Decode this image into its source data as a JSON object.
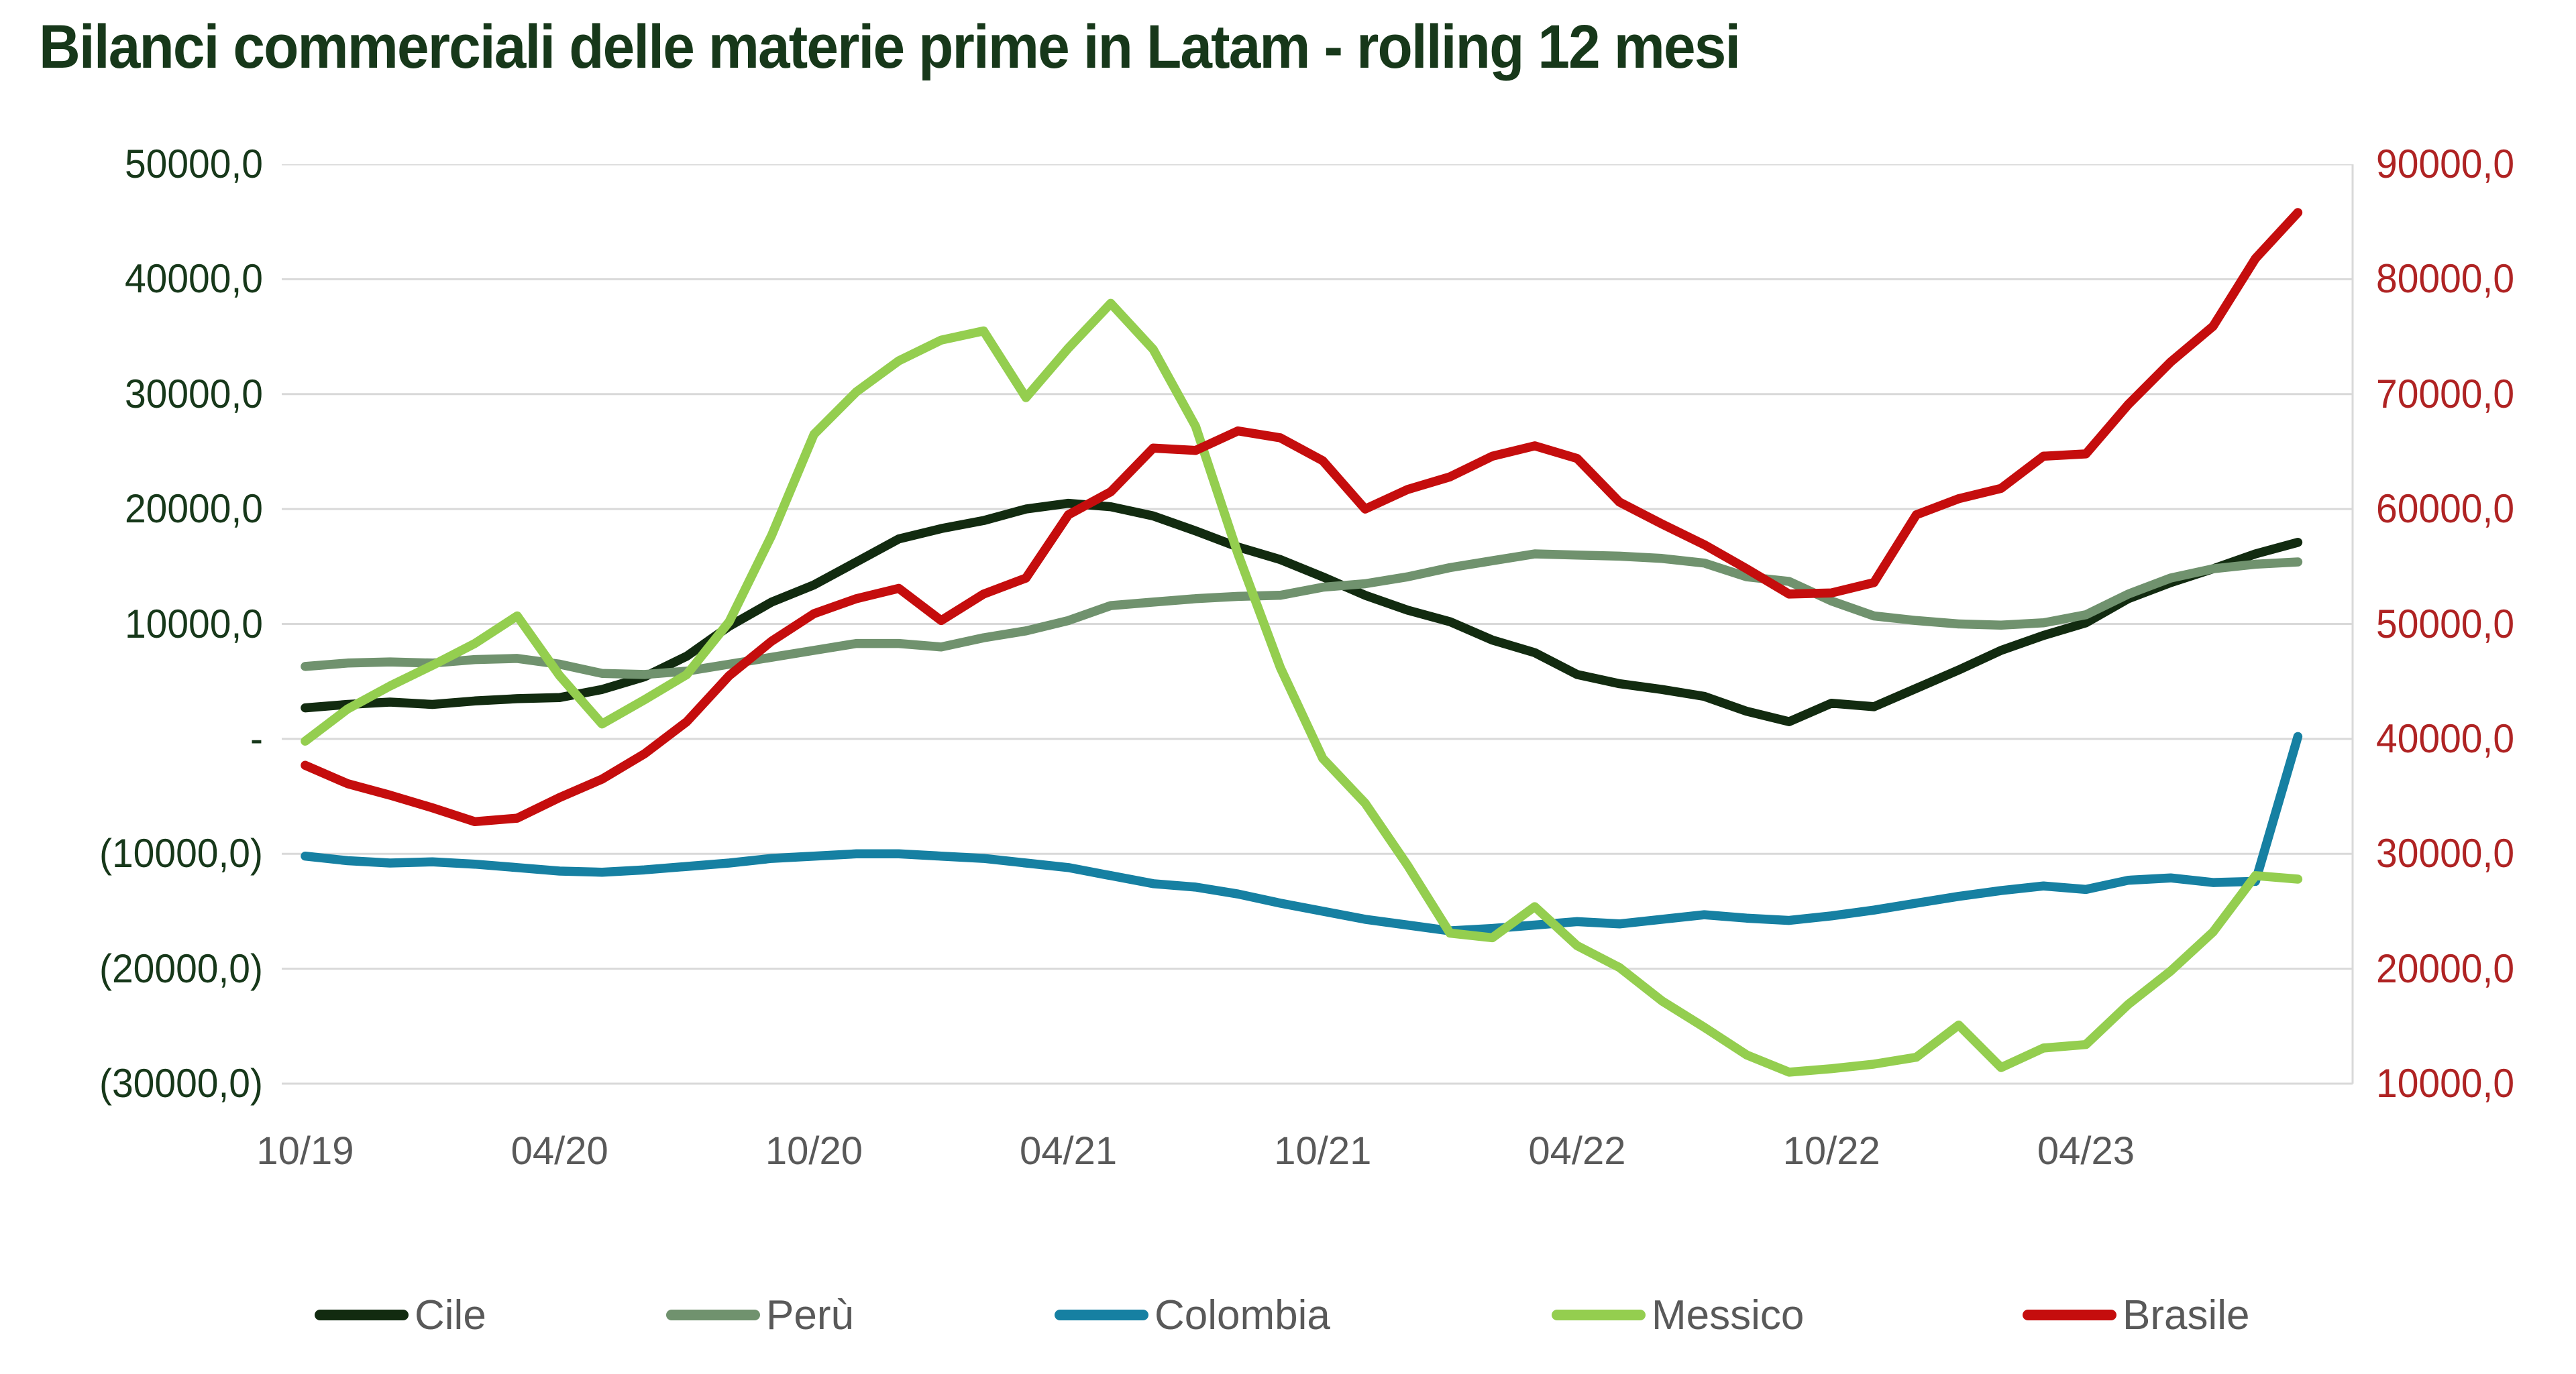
{
  "title": "Bilanci commerciali delle materie prime in Latam - rolling 12 mesi",
  "colors": {
    "background": "#FFFFFF",
    "title_text": "#17381A",
    "left_axis_labels": "#17381A",
    "right_axis_labels": "#AF2323",
    "x_axis_labels": "#595959",
    "legend_text": "#595959",
    "gridline": "#D9D9D9"
  },
  "chart_data": {
    "type": "line",
    "title": "Bilanci commerciali delle materie prime in Latam - rolling 12 mesi",
    "grid": "horizontal",
    "legend_position": "bottom",
    "x_months": [
      "10/2019",
      "11/2019",
      "12/2019",
      "01/2020",
      "02/2020",
      "03/2020",
      "04/2020",
      "05/2020",
      "06/2020",
      "07/2020",
      "08/2020",
      "09/2020",
      "10/2020",
      "11/2020",
      "12/2020",
      "01/2021",
      "02/2021",
      "03/2021",
      "04/2021",
      "05/2021",
      "06/2021",
      "07/2021",
      "08/2021",
      "09/2021",
      "10/2021",
      "11/2021",
      "12/2021",
      "01/2022",
      "02/2022",
      "03/2022",
      "04/2022",
      "05/2022",
      "06/2022",
      "07/2022",
      "08/2022",
      "09/2022",
      "10/2022",
      "11/2022",
      "12/2022",
      "01/2023",
      "02/2023",
      "03/2023",
      "04/2023",
      "05/2023",
      "06/2023",
      "07/2023",
      "08/2023",
      "09/2023"
    ],
    "x_tick_labels": [
      "10/19",
      "04/20",
      "10/20",
      "04/21",
      "10/21",
      "04/22",
      "10/22",
      "04/23"
    ],
    "left_axis": {
      "max": 50000,
      "min": -30000,
      "step": 10000,
      "tick_labels": [
        "50000,0",
        "40000,0",
        "30000,0",
        "20000,0",
        "10000,0",
        "-",
        "(10000,0)",
        "(20000,0)",
        "(30000,0)"
      ]
    },
    "right_axis": {
      "max": 90000,
      "min": 10000,
      "step": 10000,
      "series": "Brasile",
      "tick_labels": [
        "90000,0",
        "80000,0",
        "70000,0",
        "60000,0",
        "50000,0",
        "40000,0",
        "30000,0",
        "20000,0",
        "10000,0"
      ]
    },
    "series": [
      {
        "id": "cile",
        "name": "Cile",
        "axis": "left",
        "color": "#122B10",
        "values": [
          2700,
          3000,
          3200,
          3000,
          3300,
          3500,
          3600,
          4300,
          5400,
          7200,
          9800,
          11900,
          13400,
          15400,
          17400,
          18300,
          19000,
          20000,
          20500,
          20200,
          19400,
          18100,
          16700,
          15600,
          14100,
          12500,
          11200,
          10200,
          8600,
          7500,
          5600,
          4800,
          4300,
          3700,
          2400,
          1500,
          3100,
          2800,
          4400,
          6000,
          7700,
          9000,
          10100,
          12200,
          13600,
          14800,
          16100,
          17100
        ]
      },
      {
        "id": "peru",
        "name": "Perù",
        "axis": "left",
        "color": "#70926E",
        "values": [
          6300,
          6600,
          6700,
          6600,
          6900,
          7000,
          6500,
          5700,
          5600,
          5900,
          6500,
          7100,
          7700,
          8300,
          8300,
          8000,
          8800,
          9400,
          10300,
          11600,
          11900,
          12200,
          12400,
          12500,
          13200,
          13500,
          14100,
          14900,
          15500,
          16100,
          16000,
          15900,
          15700,
          15300,
          14100,
          13700,
          12000,
          10700,
          10300,
          10000,
          9900,
          10100,
          10800,
          12600,
          14000,
          14800,
          15200,
          15400
        ]
      },
      {
        "id": "colombia",
        "name": "Colombia",
        "axis": "left",
        "color": "#1680A2",
        "values": [
          -10200,
          -10600,
          -10800,
          -10700,
          -10900,
          -11200,
          -11500,
          -11600,
          -11400,
          -11100,
          -10800,
          -10400,
          -10200,
          -10000,
          -10000,
          -10200,
          -10400,
          -10800,
          -11200,
          -11900,
          -12600,
          -12900,
          -13500,
          -14300,
          -15000,
          -15700,
          -16200,
          -16700,
          -16500,
          -16200,
          -15900,
          -16100,
          -15700,
          -15300,
          -15600,
          -15800,
          -15400,
          -14900,
          -14300,
          -13700,
          -13200,
          -12800,
          -13100,
          -12300,
          -12100,
          -12500,
          -12400,
          200
        ]
      },
      {
        "id": "messico",
        "name": "Messico",
        "axis": "left",
        "color": "#94CE4F",
        "values": [
          -200,
          2600,
          4600,
          6400,
          8300,
          10700,
          5500,
          1300,
          3400,
          5600,
          10200,
          17700,
          26500,
          30200,
          32900,
          34700,
          35500,
          29700,
          34000,
          37900,
          33900,
          27200,
          16100,
          6200,
          -1700,
          -5600,
          -11000,
          -16900,
          -17300,
          -14600,
          -18000,
          -19900,
          -22800,
          -25100,
          -27500,
          -29000,
          -28700,
          -28300,
          -27700,
          -24900,
          -28600,
          -26900,
          -26600,
          -23100,
          -20200,
          -16800,
          -11900,
          -12200
        ]
      },
      {
        "id": "brasile",
        "name": "Brasile",
        "axis": "right",
        "color": "#C50D0D",
        "values": [
          37700,
          36100,
          35100,
          34000,
          32800,
          33100,
          34900,
          36500,
          38700,
          41500,
          45500,
          48500,
          50900,
          52200,
          53100,
          50300,
          52600,
          54000,
          59500,
          61500,
          65300,
          65100,
          66800,
          66200,
          64200,
          60000,
          61700,
          62800,
          64600,
          65500,
          64400,
          60600,
          58700,
          56900,
          54800,
          52600,
          52700,
          53600,
          59500,
          60900,
          61800,
          64600,
          64800,
          69100,
          72800,
          75900,
          81800,
          85800
        ]
      }
    ]
  }
}
